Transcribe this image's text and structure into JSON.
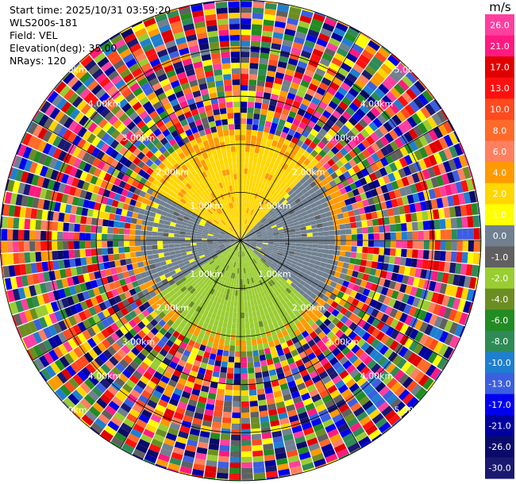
{
  "header": {
    "start_time": "Start time: 2025/10/31 03:59:20",
    "device": "WLS200s-181",
    "field": "Field: VEL",
    "elevation": "Elevation(deg): 35.00",
    "nrays": "NRays: 120"
  },
  "colorbar": {
    "unit": "m/s",
    "ticks": [
      "26.0",
      "21.0",
      "17.0",
      "13.0",
      "10.0",
      "8.0",
      "6.0",
      "4.0",
      "2.0",
      "1.0",
      "0.0",
      "-1.0",
      "-2.0",
      "-4.0",
      "-6.0",
      "-8.0",
      "-10.0",
      "-13.0",
      "-17.0",
      "-21.0",
      "-26.0",
      "-30.0"
    ],
    "colors": [
      "#ff3fa0",
      "#ff1a80",
      "#e00000",
      "#ff1010",
      "#ff4a1e",
      "#ff6a2a",
      "#ff8060",
      "#ff9a00",
      "#ffd700",
      "#ffff00",
      "#708090",
      "#606060",
      "#9acd32",
      "#6b8e23",
      "#228b22",
      "#2e8b57",
      "#1e7fd0",
      "#3b5fe0",
      "#0000ee",
      "#0000a0",
      "#0a0a6a",
      "#191970"
    ]
  },
  "chart_data": {
    "type": "heatmap",
    "projection": "polar PPI",
    "nrays": 120,
    "elevation_deg": 35.0,
    "range_rings_km": [
      1.0,
      2.0,
      3.0,
      4.0,
      5.0
    ],
    "ring_labels": [
      "1.00km",
      "2.00km",
      "3.00km",
      "4.00km",
      "5.00km"
    ],
    "max_range_km": 5.0,
    "radial_lines_deg": [
      0,
      30,
      60,
      90,
      120,
      150,
      180,
      210,
      240,
      270,
      300,
      330
    ],
    "field": "VEL",
    "unit": "m/s",
    "regions": [
      {
        "range_km": [
          0,
          2.3
        ],
        "sector": "north / north-west",
        "velocity_ms": 2.0
      },
      {
        "range_km": [
          0,
          2.3
        ],
        "sector": "north-east / east",
        "velocity_ms": 0.0
      },
      {
        "range_km": [
          0,
          2.3
        ],
        "sector": "south / south-east",
        "velocity_ms": -2.0
      },
      {
        "range_km": [
          0,
          2.3
        ],
        "sector": "south-west / west",
        "velocity_ms": 0.0
      },
      {
        "range_km": [
          2.3,
          5.0
        ],
        "sector": "all",
        "velocity_ms": "noise (-30 to 26)"
      }
    ]
  }
}
